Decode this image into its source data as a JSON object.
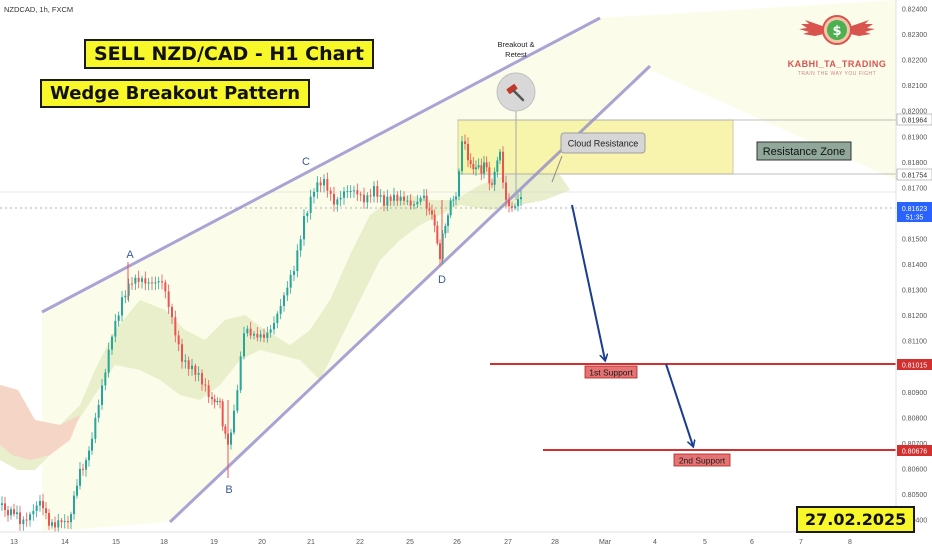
{
  "header": {
    "symbol_line": "NZDCAD, 1h, FXCM"
  },
  "titles": {
    "main": "SELL NZD/CAD - H1 Chart",
    "sub": "Wedge Breakout Pattern"
  },
  "date_label": "27.02.2025",
  "logo": {
    "name": "KABHI_TA_TRADING",
    "tagline": "TRAIN THE WAY YOU FIGHT",
    "symbol": "$"
  },
  "annotations": {
    "breakout_retest": [
      "Breakout &",
      "Retest"
    ],
    "cloud_resistance": "Cloud Resistance",
    "resistance_zone": "Resistance Zone",
    "support_1": "1st Support",
    "support_2": "2nd Support",
    "points": {
      "A": "A",
      "B": "B",
      "C": "C",
      "D": "D"
    }
  },
  "colors": {
    "candle_up": "#26a69a",
    "candle_down": "#ef5350",
    "wedge_line": "#9c8fd6",
    "support_line": "#d32f2f",
    "arrow": "#1a3d8f",
    "zone_fill": "#f7f3a0",
    "cloud_fill": "#e6eec8"
  },
  "chart_data": {
    "type": "candlestick",
    "y_axis_ticks": [
      "0.82400",
      "0.82300",
      "0.82200",
      "0.82100",
      "0.82000",
      "0.81900",
      "0.81800",
      "0.81700",
      "0.81600",
      "0.81500",
      "0.81400",
      "0.81300",
      "0.81200",
      "0.81100",
      "0.81000",
      "0.80900",
      "0.80800",
      "0.80700",
      "0.80600",
      "0.80500",
      "0.80400"
    ],
    "x_axis_ticks": [
      "13",
      "14",
      "15",
      "18",
      "19",
      "20",
      "21",
      "22",
      "25",
      "26",
      "27",
      "28",
      "Mar",
      "4",
      "5",
      "6",
      "7",
      "8"
    ],
    "price_labels": {
      "resistance_top": "0.81964",
      "resistance_bottom": "0.81754",
      "current": "0.81623",
      "current_timer": "51:35",
      "support_1": "0.81015",
      "support_2": "0.80676"
    },
    "levels": {
      "resistance_top": 0.81964,
      "resistance_bottom": 0.81754,
      "current": 0.81623,
      "support_1": 0.81015,
      "support_2": 0.80676
    }
  }
}
